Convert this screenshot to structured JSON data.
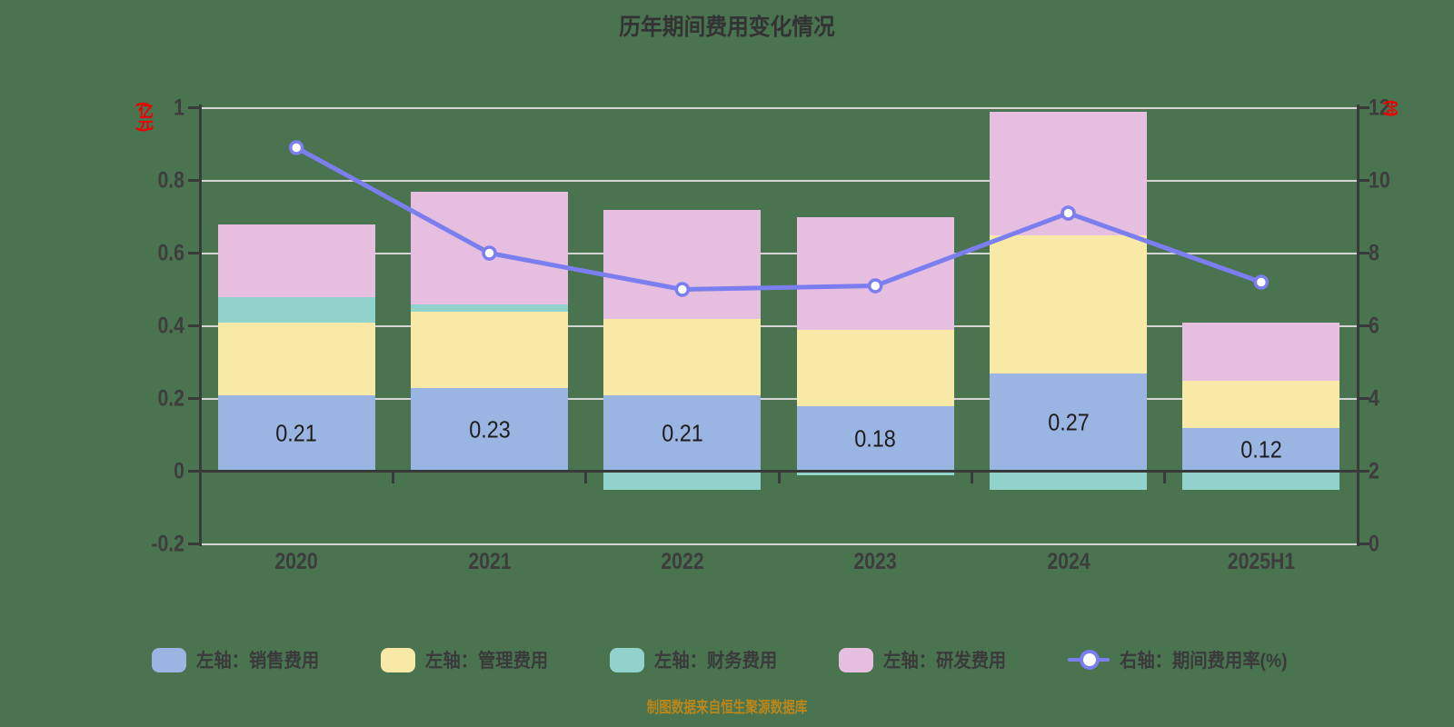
{
  "title": "历年期间费用变化情况",
  "footer": "制图数据来自恒生聚源数据库",
  "chart_data": {
    "type": "combo-stacked-bar-line",
    "categories": [
      "2020",
      "2021",
      "2022",
      "2023",
      "2024",
      "2025H1"
    ],
    "bar_series": [
      {
        "name": "左轴：销售费用",
        "color": "#9BB5E2",
        "values": [
          0.21,
          0.23,
          0.21,
          0.18,
          0.27,
          0.12
        ]
      },
      {
        "name": "左轴：管理费用",
        "color": "#F8E9A6",
        "values": [
          0.2,
          0.21,
          0.21,
          0.21,
          0.38,
          0.13
        ]
      },
      {
        "name": "左轴：财务费用",
        "color": "#92D2CC",
        "values": [
          0.07,
          0.02,
          -0.05,
          -0.01,
          -0.05,
          -0.05
        ]
      },
      {
        "name": "左轴：研发费用",
        "color": "#E6BEDF",
        "values": [
          0.2,
          0.31,
          0.3,
          0.31,
          0.34,
          0.16
        ]
      }
    ],
    "bar_value_labels": [
      "0.21",
      "0.23",
      "0.21",
      "0.18",
      "0.27",
      "0.12"
    ],
    "line_series": {
      "name": "右轴：期间费用率(%)",
      "color": "#7B7EEF",
      "values": [
        10.9,
        8.0,
        7.0,
        7.1,
        9.1,
        7.2
      ]
    },
    "left_axis": {
      "unit": "(亿元)",
      "tick_values": [
        1,
        0.8,
        0.6,
        0.4,
        0.2,
        0,
        -0.2
      ],
      "tick_labels": [
        "1",
        "0.8",
        "0.6",
        "0.4",
        "0.2",
        "0",
        "-0.2"
      ],
      "range": [
        -0.2,
        1
      ]
    },
    "right_axis": {
      "unit": "(%)",
      "tick_values": [
        12,
        10,
        8,
        6,
        4,
        2,
        0
      ],
      "tick_labels": [
        "12",
        "10",
        "8",
        "6",
        "4",
        "2",
        "0"
      ],
      "range": [
        0,
        12
      ]
    },
    "grid": true,
    "legend_position": "bottom",
    "colors": {
      "background": "#4A7350",
      "grid": "#D5D5D5",
      "axis": "#3A3A3A",
      "tick_text": "#3D3D3D",
      "title_text": "#333333",
      "bar_label_text": "#1d1d1d",
      "unit_label": "#EE0000",
      "footer_text": "#B8861B",
      "marker_fill": "#FFFFFF"
    }
  },
  "legend": {
    "items": [
      {
        "label": "左轴：销售费用",
        "type": "swatch",
        "color": "#9BB5E2"
      },
      {
        "label": "左轴：管理费用",
        "type": "swatch",
        "color": "#F8E9A6"
      },
      {
        "label": "左轴：财务费用",
        "type": "swatch",
        "color": "#92D2CC"
      },
      {
        "label": "左轴：研发费用",
        "type": "swatch",
        "color": "#E6BEDF"
      },
      {
        "label": "右轴：期间费用率(%)",
        "type": "line",
        "color": "#7B7EEF"
      }
    ]
  }
}
